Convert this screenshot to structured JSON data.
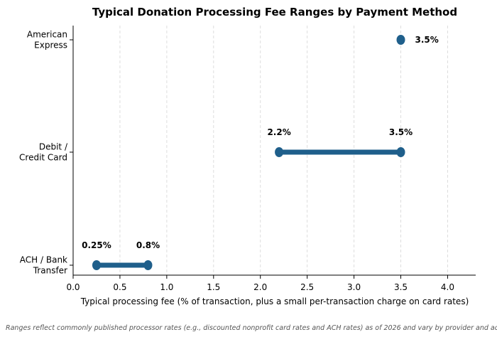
{
  "chart_data": {
    "type": "dumbbell",
    "title": "Typical Donation Processing Fee Ranges by Payment Method",
    "xlabel": "Typical processing fee (% of transaction, plus a small per-transaction charge on card rates)",
    "ylabel": "",
    "xlim": [
      0.0,
      4.3
    ],
    "xticks": [
      0.0,
      0.5,
      1.0,
      1.5,
      2.0,
      2.5,
      3.0,
      3.5,
      4.0
    ],
    "xtick_labels": [
      "0.0",
      "0.5",
      "1.0",
      "1.5",
      "2.0",
      "2.5",
      "3.0",
      "3.5",
      "4.0"
    ],
    "grid": "vertical-dashed",
    "color": "#1f5f8b",
    "categories": [
      {
        "label_lines": [
          "American",
          "Express"
        ],
        "low": 3.5,
        "high": 3.5,
        "labels": [
          "3.5%"
        ]
      },
      {
        "label_lines": [
          "Debit /",
          "Credit Card"
        ],
        "low": 2.2,
        "high": 3.5,
        "labels": [
          "2.2%",
          "3.5%"
        ]
      },
      {
        "label_lines": [
          "ACH / Bank",
          "Transfer"
        ],
        "low": 0.25,
        "high": 0.8,
        "labels": [
          "0.25%",
          "0.8%"
        ]
      }
    ],
    "footnote": "Ranges reflect commonly published processor rates (e.g., discounted nonprofit card rates and ACH rates) as of 2026 and vary by provider and account type."
  }
}
